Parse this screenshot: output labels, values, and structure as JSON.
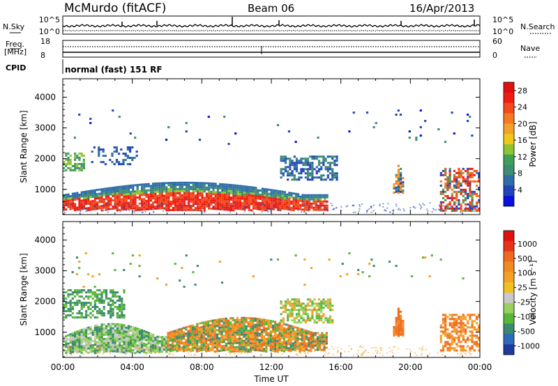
{
  "header": {
    "station": "McMurdo (fitACF)",
    "beam": "Beam 06",
    "date": "16/Apr/2013"
  },
  "noise_panel": {
    "left_label": "N.Sky",
    "left_ticks": [
      "10^5",
      "10^0"
    ],
    "right_label": "N.Search",
    "right_ticks": [
      "10^5",
      "10^0"
    ]
  },
  "freq_panel": {
    "left_label_top": "Freq.",
    "left_label_unit": "[MHz]",
    "left_ticks": [
      "18",
      "8"
    ],
    "right_label": "Nave",
    "right_ticks": [
      "60",
      "0"
    ]
  },
  "cpid": {
    "label": "CPID",
    "value": "normal (fast) 151 RF"
  },
  "x_axis": {
    "label": "Time UT",
    "ticks": [
      "00:00",
      "04:00",
      "08:00",
      "12:00",
      "16:00",
      "20:00",
      "00:00"
    ]
  },
  "chart_data": [
    {
      "type": "heatmap",
      "panel": "power",
      "ylabel": "Slant Range [km]",
      "yticks": [
        1000,
        2000,
        3000,
        4000
      ],
      "ylim": [
        180,
        4600
      ],
      "xlim_hours": [
        0,
        24
      ],
      "colorbar": {
        "label": "Power [dB]",
        "ticks": [
          "4",
          "8",
          "12",
          "16",
          "20",
          "24",
          "28"
        ],
        "colors": [
          "#0a10e0",
          "#2244b8",
          "#2e6ea6",
          "#3d8c73",
          "#3fa05a",
          "#8fc530",
          "#f0c818",
          "#f5a02a",
          "#f77a22",
          "#f34a1a",
          "#ee1c14",
          "#e01010"
        ]
      },
      "regions": [
        {
          "t0": 0.0,
          "t1": 15.2,
          "r0": 350,
          "r1": 1250,
          "shape": "main-band",
          "colors": [
            "#ee1c14",
            "#f34a1a",
            "#f77a22",
            "#f5a02a",
            "#8fc530",
            "#3d8c73",
            "#2e6ea6"
          ]
        },
        {
          "t0": 12.5,
          "t1": 15.8,
          "r0": 1300,
          "r1": 2100,
          "shape": "patch",
          "colors": [
            "#2244b8",
            "#2e6ea6",
            "#3d8c73"
          ]
        },
        {
          "t0": 0.0,
          "t1": 1.2,
          "r0": 1600,
          "r1": 2200,
          "shape": "patch",
          "colors": [
            "#8fc530",
            "#3fa05a",
            "#3d8c73"
          ]
        },
        {
          "t0": 1.5,
          "t1": 4.2,
          "r0": 1800,
          "r1": 2400,
          "shape": "speckle",
          "colors": [
            "#2244b8",
            "#2e6ea6"
          ]
        },
        {
          "t0": 19.0,
          "t1": 19.6,
          "r0": 900,
          "r1": 1900,
          "shape": "plume",
          "colors": [
            "#f77a22",
            "#f5a02a",
            "#3d8c73",
            "#2244b8"
          ]
        },
        {
          "t0": 21.7,
          "t1": 24.0,
          "r0": 300,
          "r1": 1700,
          "shape": "patch",
          "colors": [
            "#ee1c14",
            "#f34a1a",
            "#f77a22",
            "#3fa05a",
            "#2244b8"
          ]
        },
        {
          "t0": 0.5,
          "t1": 23.5,
          "r0": 2500,
          "r1": 3600,
          "shape": "sparse",
          "colors": [
            "#2244b8",
            "#3d8c73",
            "#0a10e0"
          ]
        }
      ]
    },
    {
      "type": "heatmap",
      "panel": "velocity",
      "ylabel": "Slant Range [km]",
      "yticks": [
        1000,
        2000,
        3000,
        4000
      ],
      "ylim": [
        180,
        4600
      ],
      "xlim_hours": [
        0,
        24
      ],
      "colorbar": {
        "label": "Velocity [m s⁻¹]",
        "ticks": [
          "1000",
          "500",
          "100",
          "25",
          "-25",
          "-100",
          "-500",
          "-1000"
        ],
        "colors": [
          "#1f3a9e",
          "#2d6ab8",
          "#3a8a70",
          "#58b838",
          "#9ad060",
          "#c8c8c8",
          "#f2c020",
          "#f5a028",
          "#f28a22",
          "#ef6a1c",
          "#e8321a",
          "#e01010"
        ]
      },
      "regions": [
        {
          "t0": 0.0,
          "t1": 6.0,
          "r0": 350,
          "r1": 1300,
          "shape": "main-band",
          "colors": [
            "#58b838",
            "#3a8a70",
            "#c8c8c8",
            "#9ad060"
          ]
        },
        {
          "t0": 6.0,
          "t1": 15.2,
          "r0": 400,
          "r1": 1500,
          "shape": "main-band",
          "colors": [
            "#f28a22",
            "#f5a028",
            "#3a8a70",
            "#58b838",
            "#ef6a1c"
          ]
        },
        {
          "t0": 0.0,
          "t1": 3.5,
          "r0": 1500,
          "r1": 2400,
          "shape": "patch",
          "colors": [
            "#3a8a70",
            "#58b838"
          ]
        },
        {
          "t0": 12.5,
          "t1": 15.5,
          "r0": 1300,
          "r1": 2100,
          "shape": "patch",
          "colors": [
            "#58b838",
            "#9ad060",
            "#f5a028"
          ]
        },
        {
          "t0": 19.0,
          "t1": 19.6,
          "r0": 900,
          "r1": 1900,
          "shape": "plume",
          "colors": [
            "#f28a22",
            "#ef6a1c"
          ]
        },
        {
          "t0": 21.7,
          "t1": 24.0,
          "r0": 400,
          "r1": 1600,
          "shape": "patch",
          "colors": [
            "#f28a22",
            "#ef6a1c",
            "#f5a028"
          ]
        },
        {
          "t0": 0.5,
          "t1": 23.5,
          "r0": 2500,
          "r1": 3600,
          "shape": "sparse",
          "colors": [
            "#58b838",
            "#f5a028",
            "#3a8a70"
          ]
        }
      ]
    }
  ]
}
